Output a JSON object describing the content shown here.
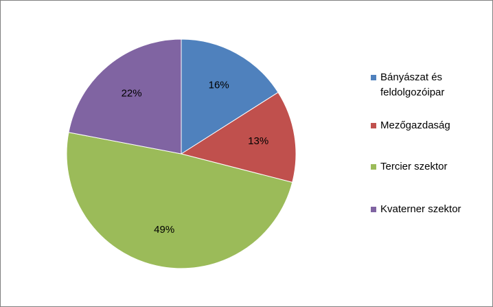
{
  "chart_data": {
    "type": "pie",
    "title": "",
    "legend_position": "right",
    "slices": [
      {
        "name": "Bányászat és feldolgozóipar",
        "value": 16,
        "label": "16%",
        "color": "#4f81bd"
      },
      {
        "name": "Mezőgazdaság",
        "value": 13,
        "label": "13%",
        "color": "#c0504d"
      },
      {
        "name": "Tercier szektor",
        "value": 49,
        "label": "49%",
        "color": "#9bbb59"
      },
      {
        "name": "Kvaterner szektor",
        "value": 22,
        "label": "22%",
        "color": "#8064a2"
      }
    ]
  }
}
